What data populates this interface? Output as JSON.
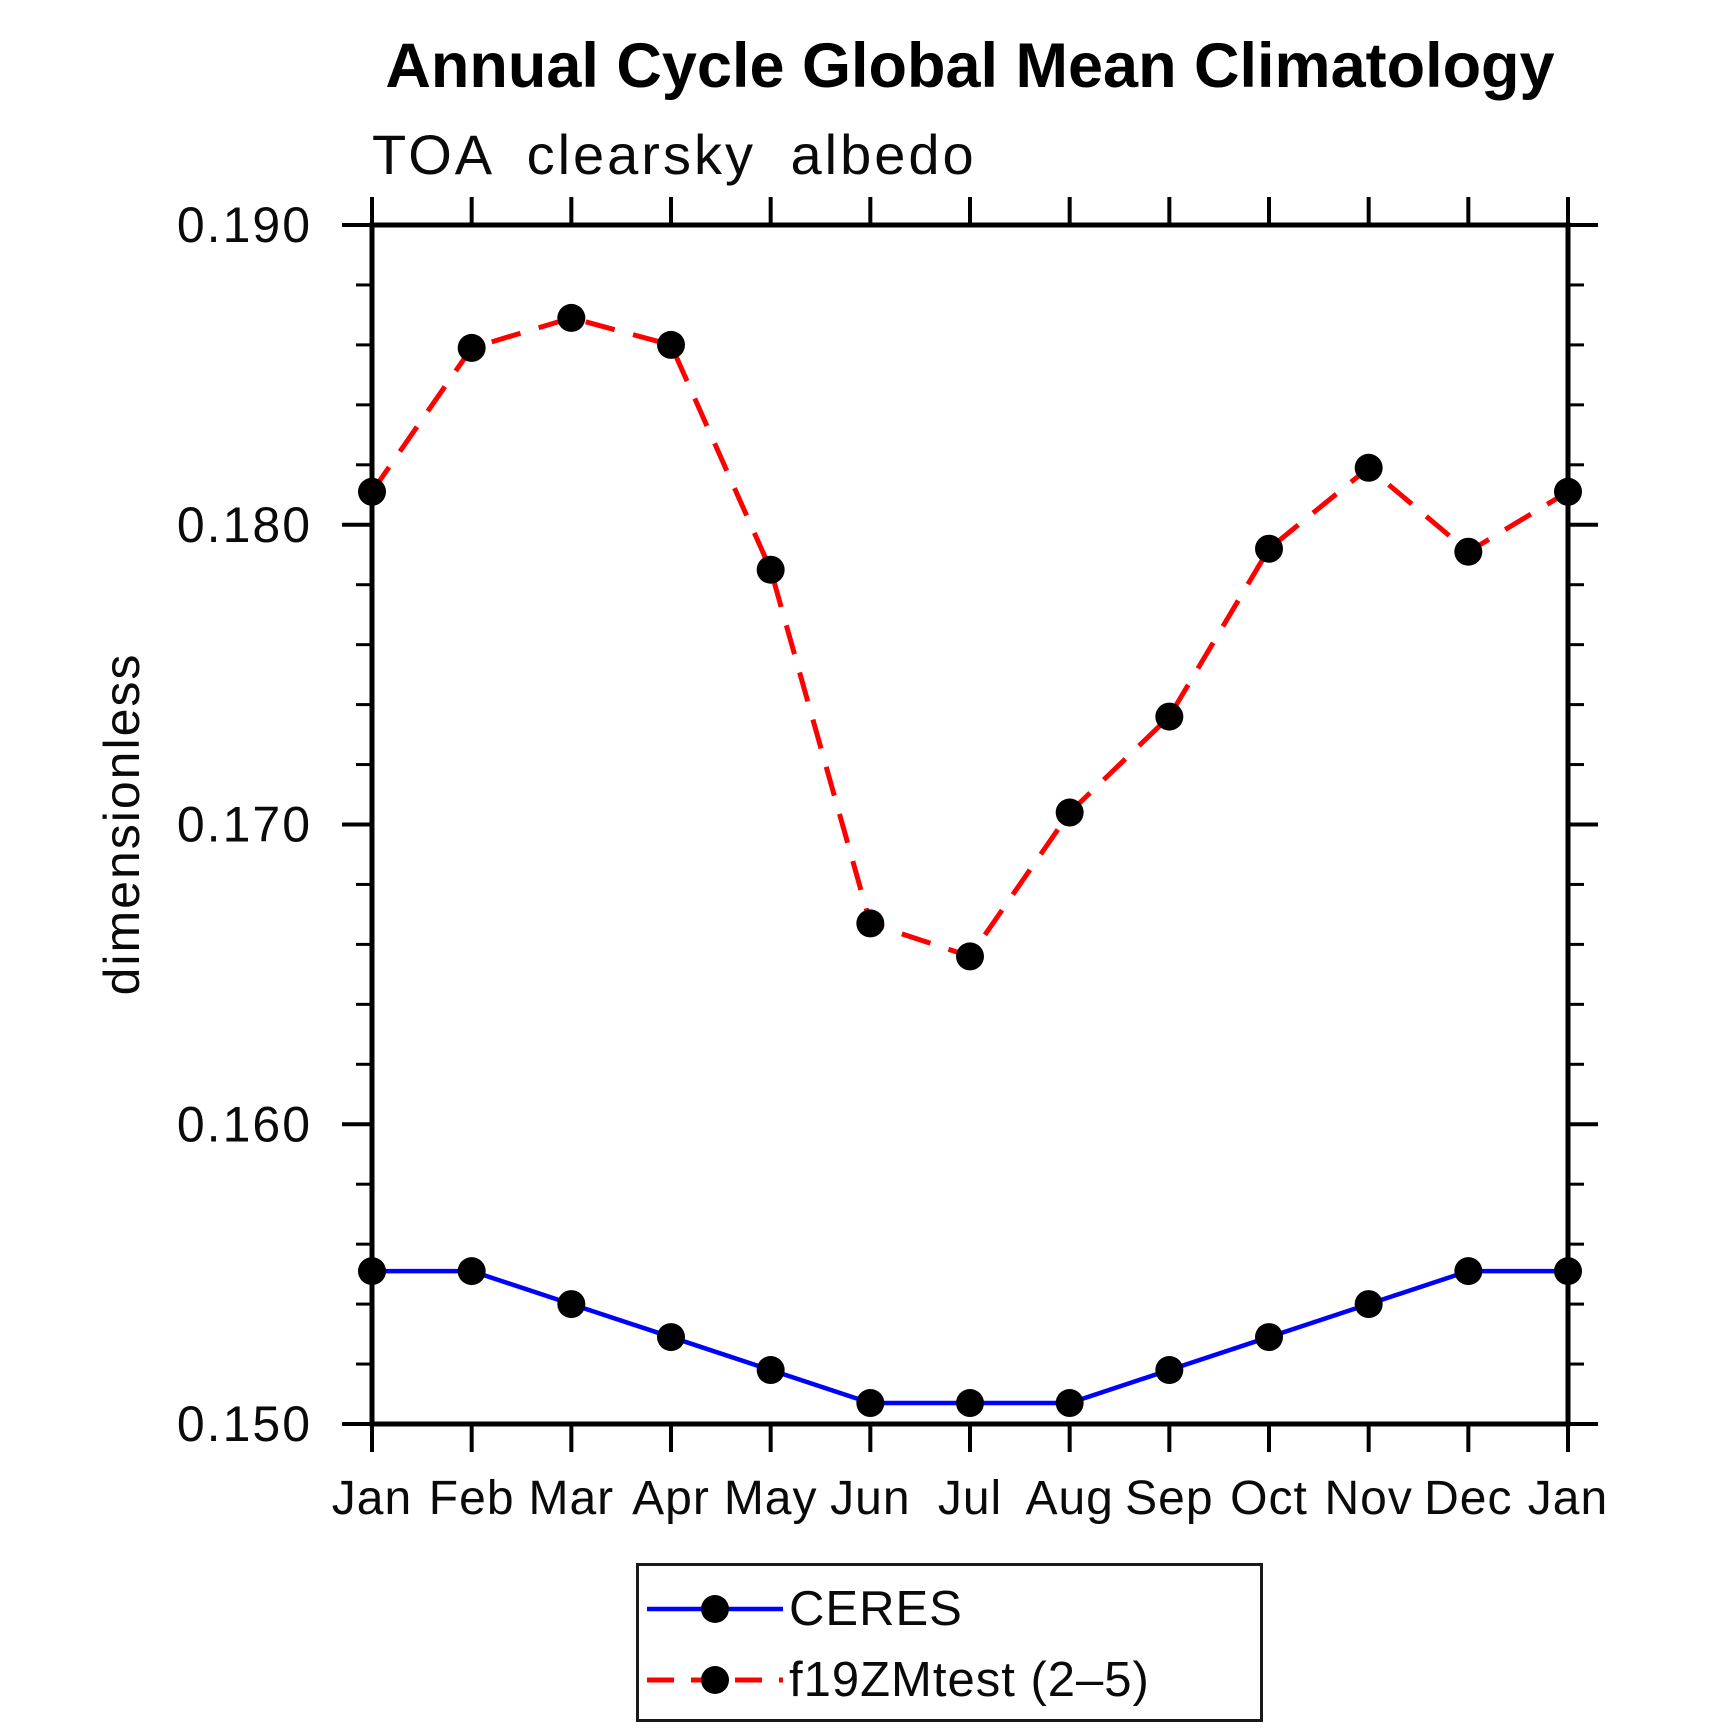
{
  "chart_data": {
    "type": "line",
    "title": "Annual Cycle Global Mean Climatology",
    "subtitle": "TOA clearsky albedo",
    "ylabel": "dimensionless",
    "categories": [
      "Jan",
      "Feb",
      "Mar",
      "Apr",
      "May",
      "Jun",
      "Jul",
      "Aug",
      "Sep",
      "Oct",
      "Nov",
      "Dec",
      "Jan"
    ],
    "series": [
      {
        "name": "CERES",
        "color": "#0000ff",
        "line_style": "solid",
        "marker": "circle",
        "marker_color": "#000000",
        "values": [
          0.1551,
          0.1551,
          0.154,
          0.1529,
          0.1518,
          0.1507,
          0.1507,
          0.1507,
          0.1518,
          0.1529,
          0.154,
          0.1551,
          0.1551
        ]
      },
      {
        "name": "f19ZMtest (2–5)",
        "color": "#ff0000",
        "line_style": "dashed",
        "marker": "circle",
        "marker_color": "#000000",
        "values": [
          0.1811,
          0.1859,
          0.1869,
          0.186,
          0.1785,
          0.1667,
          0.1656,
          0.1704,
          0.1736,
          0.1792,
          0.1819,
          0.1791,
          0.1811
        ]
      }
    ],
    "ylim": [
      0.15,
      0.19
    ],
    "ytick_step": 0.01,
    "ytick_minor_step": 0.002,
    "ytick_labels": [
      "0.150",
      "0.160",
      "0.170",
      "0.180",
      "0.190"
    ],
    "grid": false,
    "legend_position": "bottom-center",
    "axis_color": "#000000",
    "background_color": "#ffffff"
  }
}
